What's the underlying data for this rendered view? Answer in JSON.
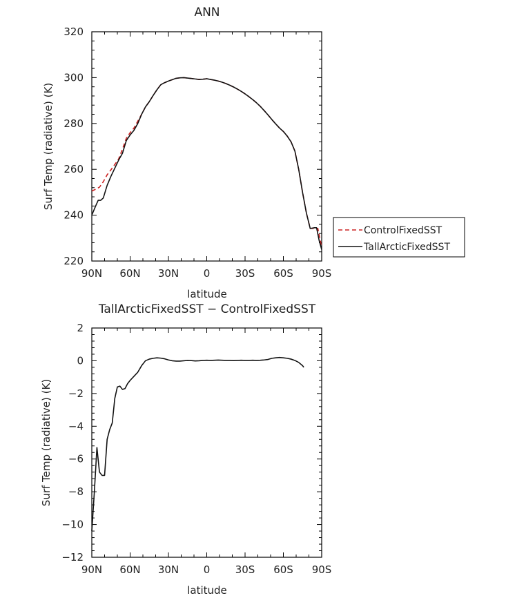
{
  "chart_data": [
    {
      "type": "line",
      "title": "ANN",
      "xlabel": "latitude",
      "ylabel": "Surf Temp (radiative) (K)",
      "xlim": [
        90,
        -90
      ],
      "ylim": [
        220,
        320
      ],
      "x_ticks": [
        {
          "value": 90,
          "label": "90N"
        },
        {
          "value": 60,
          "label": "60N"
        },
        {
          "value": 30,
          "label": "30N"
        },
        {
          "value": 0,
          "label": "0"
        },
        {
          "value": -30,
          "label": "30S"
        },
        {
          "value": -60,
          "label": "60S"
        },
        {
          "value": -90,
          "label": "90S"
        }
      ],
      "y_ticks": [
        220,
        240,
        260,
        280,
        300,
        320
      ],
      "legend_position": "right",
      "legend_box": true,
      "grid": false,
      "series": [
        {
          "name": "ControlFixedSST",
          "color": "#cc2222",
          "dash": "dashed",
          "points": [
            [
              90,
              250.5
            ],
            [
              87,
              251.3
            ],
            [
              84,
              252.2
            ],
            [
              81,
              254.6
            ],
            [
              78,
              257.6
            ],
            [
              75,
              259.8
            ],
            [
              72,
              262.1
            ],
            [
              69,
              264.5
            ],
            [
              66,
              268.8
            ],
            [
              63,
              273.5
            ],
            [
              60,
              276
            ],
            [
              57,
              278
            ],
            [
              54,
              281
            ],
            [
              51,
              284
            ],
            [
              48,
              287.2
            ],
            [
              45,
              289.5
            ],
            [
              42,
              292.2
            ],
            [
              39,
              294.7
            ],
            [
              36,
              296.9
            ],
            [
              33,
              297.8
            ],
            [
              30,
              298.5
            ],
            [
              27,
              299.1
            ],
            [
              24,
              299.7
            ],
            [
              21,
              299.9
            ],
            [
              18,
              300
            ],
            [
              15,
              299.8
            ],
            [
              12,
              299.6
            ],
            [
              9,
              299.4
            ],
            [
              6,
              299.2
            ],
            [
              3,
              299.3
            ],
            [
              0,
              299.5
            ],
            [
              -3,
              299.2
            ],
            [
              -6,
              298.9
            ],
            [
              -9,
              298.5
            ],
            [
              -12,
              298
            ],
            [
              -15,
              297.4
            ],
            [
              -18,
              296.7
            ],
            [
              -21,
              295.9
            ],
            [
              -24,
              295
            ],
            [
              -27,
              294
            ],
            [
              -30,
              292.9
            ],
            [
              -33,
              291.7
            ],
            [
              -36,
              290.4
            ],
            [
              -39,
              289
            ],
            [
              -42,
              287.4
            ],
            [
              -45,
              285.6
            ],
            [
              -48,
              283.7
            ],
            [
              -51,
              281.7
            ],
            [
              -54,
              279.8
            ],
            [
              -57,
              278
            ],
            [
              -60,
              276.5
            ],
            [
              -63,
              274.5
            ],
            [
              -66,
              272
            ],
            [
              -69,
              268
            ],
            [
              -72,
              260
            ],
            [
              -75,
              250
            ],
            [
              -78,
              241
            ],
            [
              -81,
              234.2
            ],
            [
              -84,
              234.2
            ],
            [
              -87,
              234.2
            ],
            [
              -90,
              226
            ]
          ]
        },
        {
          "name": "TallArcticFixedSST",
          "color": "#111111",
          "dash": "solid",
          "points": [
            [
              90,
              240
            ],
            [
              87,
              244
            ],
            [
              85,
              246.5
            ],
            [
              83,
              246.5
            ],
            [
              81,
              247.5
            ],
            [
              78,
              253
            ],
            [
              75,
              257
            ],
            [
              72,
              260.5
            ],
            [
              69,
              264
            ],
            [
              66,
              267
            ],
            [
              63,
              272.5
            ],
            [
              60,
              275
            ],
            [
              57,
              277
            ],
            [
              54,
              280
            ],
            [
              51,
              284
            ],
            [
              48,
              287.2
            ],
            [
              45,
              289.5
            ],
            [
              42,
              292.2
            ],
            [
              39,
              294.7
            ],
            [
              36,
              296.9
            ],
            [
              33,
              297.8
            ],
            [
              30,
              298.5
            ],
            [
              27,
              299.1
            ],
            [
              24,
              299.7
            ],
            [
              21,
              299.9
            ],
            [
              18,
              300
            ],
            [
              15,
              299.8
            ],
            [
              12,
              299.6
            ],
            [
              9,
              299.4
            ],
            [
              6,
              299.2
            ],
            [
              3,
              299.3
            ],
            [
              0,
              299.5
            ],
            [
              -3,
              299.2
            ],
            [
              -6,
              298.9
            ],
            [
              -9,
              298.5
            ],
            [
              -12,
              298
            ],
            [
              -15,
              297.4
            ],
            [
              -18,
              296.7
            ],
            [
              -21,
              295.9
            ],
            [
              -24,
              295
            ],
            [
              -27,
              294
            ],
            [
              -30,
              292.9
            ],
            [
              -33,
              291.7
            ],
            [
              -36,
              290.4
            ],
            [
              -39,
              289
            ],
            [
              -42,
              287.4
            ],
            [
              -45,
              285.6
            ],
            [
              -48,
              283.7
            ],
            [
              -51,
              281.7
            ],
            [
              -54,
              279.8
            ],
            [
              -57,
              278
            ],
            [
              -60,
              276.5
            ],
            [
              -63,
              274.5
            ],
            [
              -66,
              272
            ],
            [
              -69,
              268
            ],
            [
              -72,
              260
            ],
            [
              -75,
              250
            ],
            [
              -78,
              241
            ],
            [
              -81,
              234.2
            ],
            [
              -84,
              234.5
            ],
            [
              -86,
              234.5
            ],
            [
              -88,
              229
            ],
            [
              -90,
              225
            ]
          ]
        }
      ]
    },
    {
      "type": "line",
      "title": "TallArcticFixedSST − ControlFixedSST",
      "xlabel": "latitude",
      "ylabel": "Surf Temp (radiative) (K)",
      "xlim": [
        90,
        -90
      ],
      "ylim": [
        -12,
        2
      ],
      "x_ticks": [
        {
          "value": 90,
          "label": "90N"
        },
        {
          "value": 60,
          "label": "60N"
        },
        {
          "value": 30,
          "label": "30N"
        },
        {
          "value": 0,
          "label": "0"
        },
        {
          "value": -30,
          "label": "30S"
        },
        {
          "value": -60,
          "label": "60S"
        },
        {
          "value": -90,
          "label": "90S"
        }
      ],
      "y_ticks": [
        -12,
        -10,
        -8,
        -6,
        -4,
        -2,
        0,
        2
      ],
      "y_tick_labels": [
        "−12",
        "−10",
        "−8",
        "−6",
        "−4",
        "−2",
        "0",
        "2"
      ],
      "grid": false,
      "series": [
        {
          "color": "#111111",
          "dash": "solid",
          "points": [
            [
              90,
              -10.4
            ],
            [
              88,
              -8
            ],
            [
              86,
              -5.3
            ],
            [
              84,
              -6.8
            ],
            [
              82,
              -7
            ],
            [
              80,
              -7
            ],
            [
              78,
              -4.8
            ],
            [
              76,
              -4.2
            ],
            [
              74,
              -3.8
            ],
            [
              72,
              -2.3
            ],
            [
              70,
              -1.6
            ],
            [
              68,
              -1.55
            ],
            [
              66,
              -1.75
            ],
            [
              64,
              -1.7
            ],
            [
              62,
              -1.4
            ],
            [
              60,
              -1.2
            ],
            [
              57,
              -0.95
            ],
            [
              54,
              -0.7
            ],
            [
              51,
              -0.3
            ],
            [
              48,
              0
            ],
            [
              45,
              0.1
            ],
            [
              42,
              0.15
            ],
            [
              39,
              0.18
            ],
            [
              36,
              0.16
            ],
            [
              33,
              0.12
            ],
            [
              30,
              0.05
            ],
            [
              27,
              0
            ],
            [
              24,
              -0.02
            ],
            [
              21,
              -0.02
            ],
            [
              18,
              0
            ],
            [
              15,
              0.02
            ],
            [
              12,
              0.01
            ],
            [
              9,
              -0.01
            ],
            [
              6,
              0
            ],
            [
              3,
              0.02
            ],
            [
              0,
              0.03
            ],
            [
              -3,
              0.02
            ],
            [
              -6,
              0.03
            ],
            [
              -9,
              0.04
            ],
            [
              -12,
              0.03
            ],
            [
              -15,
              0.02
            ],
            [
              -18,
              0.02
            ],
            [
              -21,
              0.01
            ],
            [
              -24,
              0.02
            ],
            [
              -27,
              0.03
            ],
            [
              -30,
              0.02
            ],
            [
              -33,
              0.02
            ],
            [
              -36,
              0.03
            ],
            [
              -39,
              0.02
            ],
            [
              -42,
              0.03
            ],
            [
              -45,
              0.05
            ],
            [
              -48,
              0.08
            ],
            [
              -51,
              0.15
            ],
            [
              -54,
              0.18
            ],
            [
              -57,
              0.2
            ],
            [
              -60,
              0.18
            ],
            [
              -63,
              0.15
            ],
            [
              -66,
              0.1
            ],
            [
              -69,
              0.02
            ],
            [
              -72,
              -0.1
            ],
            [
              -75,
              -0.3
            ],
            [
              -76,
              -0.4
            ]
          ]
        }
      ]
    }
  ]
}
